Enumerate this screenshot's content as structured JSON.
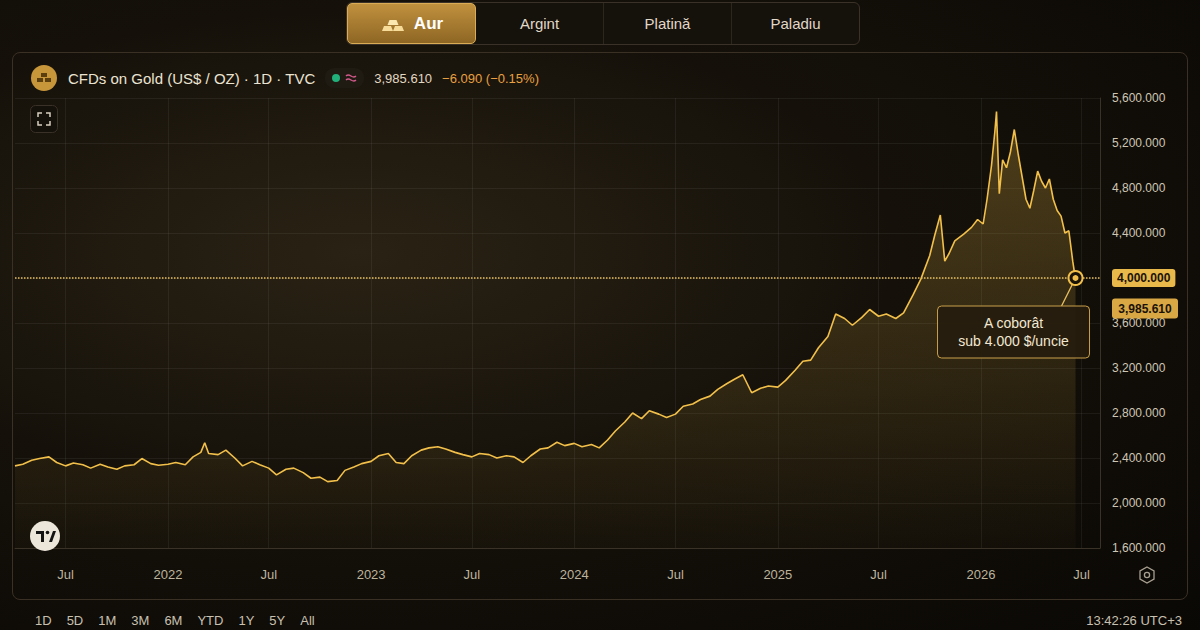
{
  "tabs": {
    "items": [
      "Aur",
      "Argint",
      "Platină",
      "Paladiu"
    ],
    "active": "Aur"
  },
  "chart_data": {
    "type": "line",
    "title": "CFDs on Gold (US$ / OZ) · 1D · TVC",
    "last_price": {
      "value": 3985.61,
      "label": "3,985.610"
    },
    "change": "−6.090 (−0.15%)",
    "color": "#f2c04a",
    "x": [
      "2021-04-01",
      "2021-04-15",
      "2021-05-01",
      "2021-05-15",
      "2021-06-01",
      "2021-06-15",
      "2021-07-01",
      "2021-07-15",
      "2021-08-01",
      "2021-08-15",
      "2021-09-01",
      "2021-09-15",
      "2021-10-01",
      "2021-10-15",
      "2021-11-01",
      "2021-11-15",
      "2021-12-01",
      "2021-12-15",
      "2022-01-01",
      "2022-01-15",
      "2022-02-01",
      "2022-02-15",
      "2022-03-01",
      "2022-03-08",
      "2022-03-15",
      "2022-04-01",
      "2022-04-15",
      "2022-05-01",
      "2022-05-15",
      "2022-06-01",
      "2022-06-15",
      "2022-07-01",
      "2022-07-15",
      "2022-08-01",
      "2022-08-15",
      "2022-09-01",
      "2022-09-15",
      "2022-10-01",
      "2022-10-15",
      "2022-11-01",
      "2022-11-15",
      "2022-12-01",
      "2022-12-15",
      "2023-01-01",
      "2023-01-15",
      "2023-02-01",
      "2023-02-15",
      "2023-03-01",
      "2023-03-15",
      "2023-04-01",
      "2023-04-15",
      "2023-05-01",
      "2023-05-15",
      "2023-06-01",
      "2023-06-15",
      "2023-07-01",
      "2023-07-15",
      "2023-08-01",
      "2023-08-15",
      "2023-09-01",
      "2023-09-15",
      "2023-10-01",
      "2023-10-15",
      "2023-11-01",
      "2023-11-15",
      "2023-12-01",
      "2023-12-15",
      "2024-01-01",
      "2024-01-15",
      "2024-02-01",
      "2024-02-15",
      "2024-03-01",
      "2024-03-15",
      "2024-04-01",
      "2024-04-15",
      "2024-05-01",
      "2024-05-15",
      "2024-06-01",
      "2024-06-15",
      "2024-07-01",
      "2024-07-15",
      "2024-08-01",
      "2024-08-15",
      "2024-09-01",
      "2024-09-15",
      "2024-10-01",
      "2024-10-15",
      "2024-10-30",
      "2024-11-15",
      "2024-12-01",
      "2024-12-15",
      "2025-01-01",
      "2025-01-15",
      "2025-02-01",
      "2025-02-15",
      "2025-03-01",
      "2025-03-15",
      "2025-04-01",
      "2025-04-15",
      "2025-05-01",
      "2025-05-15",
      "2025-06-01",
      "2025-06-15",
      "2025-07-01",
      "2025-07-15",
      "2025-08-01",
      "2025-08-15",
      "2025-09-01",
      "2025-09-15",
      "2025-10-01",
      "2025-10-10",
      "2025-10-20",
      "2025-10-28",
      "2025-11-05",
      "2025-11-15",
      "2025-12-01",
      "2025-12-15",
      "2025-12-26",
      "2026-01-05",
      "2026-01-12",
      "2026-01-20",
      "2026-01-26",
      "2026-01-29",
      "2026-02-03",
      "2026-02-09",
      "2026-02-16",
      "2026-02-23",
      "2026-03-02",
      "2026-03-09",
      "2026-03-16",
      "2026-03-23",
      "2026-03-30",
      "2026-04-06",
      "2026-04-13",
      "2026-04-20",
      "2026-04-27",
      "2026-05-04",
      "2026-05-11",
      "2026-05-18",
      "2026-05-25",
      "2026-06-01",
      "2026-06-08",
      "2026-06-15",
      "2026-06-20"
    ],
    "values": [
      2330,
      2345,
      2380,
      2395,
      2410,
      2360,
      2330,
      2355,
      2340,
      2310,
      2345,
      2320,
      2300,
      2330,
      2340,
      2395,
      2350,
      2335,
      2345,
      2360,
      2340,
      2410,
      2450,
      2535,
      2440,
      2430,
      2470,
      2400,
      2330,
      2370,
      2340,
      2310,
      2250,
      2300,
      2310,
      2270,
      2220,
      2230,
      2190,
      2200,
      2290,
      2320,
      2350,
      2370,
      2420,
      2440,
      2360,
      2350,
      2420,
      2470,
      2490,
      2500,
      2480,
      2450,
      2430,
      2410,
      2440,
      2430,
      2400,
      2420,
      2410,
      2360,
      2420,
      2480,
      2490,
      2540,
      2510,
      2530,
      2500,
      2520,
      2490,
      2560,
      2640,
      2720,
      2800,
      2750,
      2820,
      2790,
      2760,
      2790,
      2860,
      2880,
      2920,
      2950,
      3010,
      3060,
      3100,
      3140,
      2980,
      3020,
      3040,
      3030,
      3090,
      3180,
      3260,
      3270,
      3380,
      3480,
      3680,
      3640,
      3580,
      3650,
      3720,
      3660,
      3680,
      3640,
      3690,
      3850,
      3990,
      4200,
      4380,
      4560,
      4150,
      4220,
      4330,
      4390,
      4450,
      4520,
      4480,
      4700,
      5000,
      5300,
      5480,
      4750,
      5050,
      4980,
      5120,
      5320,
      5100,
      4900,
      4700,
      4620,
      4780,
      4950,
      4860,
      4800,
      4880,
      4700,
      4600,
      4550,
      4400,
      4420,
      4150,
      3985.61
    ],
    "xlim": [
      "2021-04-01",
      "2026-08-03"
    ],
    "xticks": [
      {
        "value": "2021-07-01",
        "label": "Jul"
      },
      {
        "value": "2022-01-01",
        "label": "2022"
      },
      {
        "value": "2022-07-01",
        "label": "Jul"
      },
      {
        "value": "2023-01-01",
        "label": "2023"
      },
      {
        "value": "2023-07-01",
        "label": "Jul"
      },
      {
        "value": "2024-01-01",
        "label": "2024"
      },
      {
        "value": "2024-07-01",
        "label": "Jul"
      },
      {
        "value": "2025-01-01",
        "label": "2025"
      },
      {
        "value": "2025-07-01",
        "label": "Jul"
      },
      {
        "value": "2026-01-01",
        "label": "2026"
      },
      {
        "value": "2026-07-01",
        "label": "Jul"
      }
    ],
    "ylim": [
      1600,
      5600
    ],
    "yticks": [
      {
        "value": 1600,
        "label": "1,600.000"
      },
      {
        "value": 2000,
        "label": "2,000.000"
      },
      {
        "value": 2400,
        "label": "2,400.000"
      },
      {
        "value": 2800,
        "label": "2,800.000"
      },
      {
        "value": 3200,
        "label": "3,200.000"
      },
      {
        "value": 3600,
        "label": "3,600.000"
      },
      {
        "value": 4000,
        "label": "4,000.000"
      },
      {
        "value": 4400,
        "label": "4,400.000"
      },
      {
        "value": 4800,
        "label": "4,800.000"
      },
      {
        "value": 5200,
        "label": "5,200.000"
      },
      {
        "value": 5600,
        "label": "5,600.000"
      }
    ],
    "grid": true,
    "reference_line": {
      "value": 4000
    },
    "annotation": {
      "text": [
        "A coborât",
        "sub 4.000 $/uncie"
      ],
      "x": "2026-06-20",
      "y": 4000
    }
  },
  "range_buttons": [
    "1D",
    "5D",
    "1M",
    "3M",
    "6M",
    "YTD",
    "1Y",
    "5Y",
    "All"
  ],
  "clock": "13:42:26 UTC+3"
}
